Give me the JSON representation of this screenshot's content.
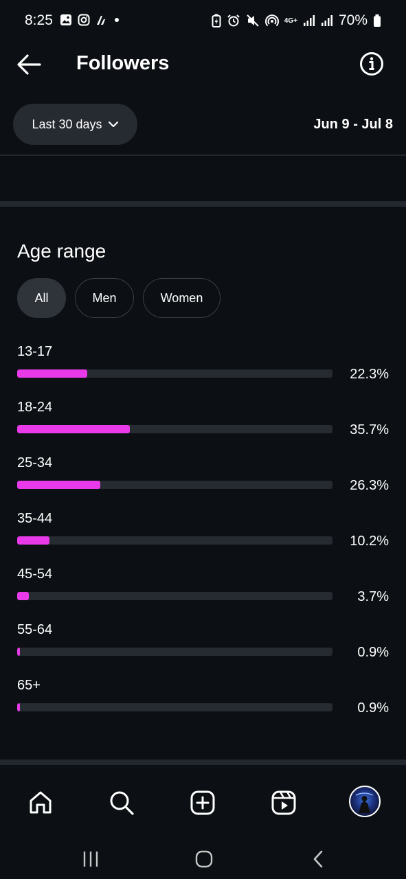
{
  "status_bar": {
    "time": "8:25",
    "battery": "70%",
    "network": "4G+"
  },
  "header": {
    "title": "Followers"
  },
  "filter": {
    "period_label": "Last 30 days",
    "date_range": "Jun 9 - Jul 8"
  },
  "age_range": {
    "title": "Age range",
    "chips": [
      {
        "label": "All",
        "active": true
      },
      {
        "label": "Men",
        "active": false
      },
      {
        "label": "Women",
        "active": false
      }
    ],
    "rows": [
      {
        "label": "13-17",
        "value": "22.3%",
        "pct": 22.3
      },
      {
        "label": "18-24",
        "value": "35.7%",
        "pct": 35.7
      },
      {
        "label": "25-34",
        "value": "26.3%",
        "pct": 26.3
      },
      {
        "label": "35-44",
        "value": "10.2%",
        "pct": 10.2
      },
      {
        "label": "45-54",
        "value": "3.7%",
        "pct": 3.7
      },
      {
        "label": "55-64",
        "value": "0.9%",
        "pct": 0.9
      },
      {
        "label": "65+",
        "value": "0.9%",
        "pct": 0.9
      }
    ]
  },
  "colors": {
    "background": "#0c1014",
    "accent_bar": "#e83ae8",
    "track": "#262a31"
  },
  "icons": {
    "back": "arrow-left-icon",
    "info": "info-icon",
    "dropdown": "chevron-down-icon",
    "tabs": [
      "home-icon",
      "search-icon",
      "create-icon",
      "reels-icon",
      "profile-avatar"
    ]
  }
}
